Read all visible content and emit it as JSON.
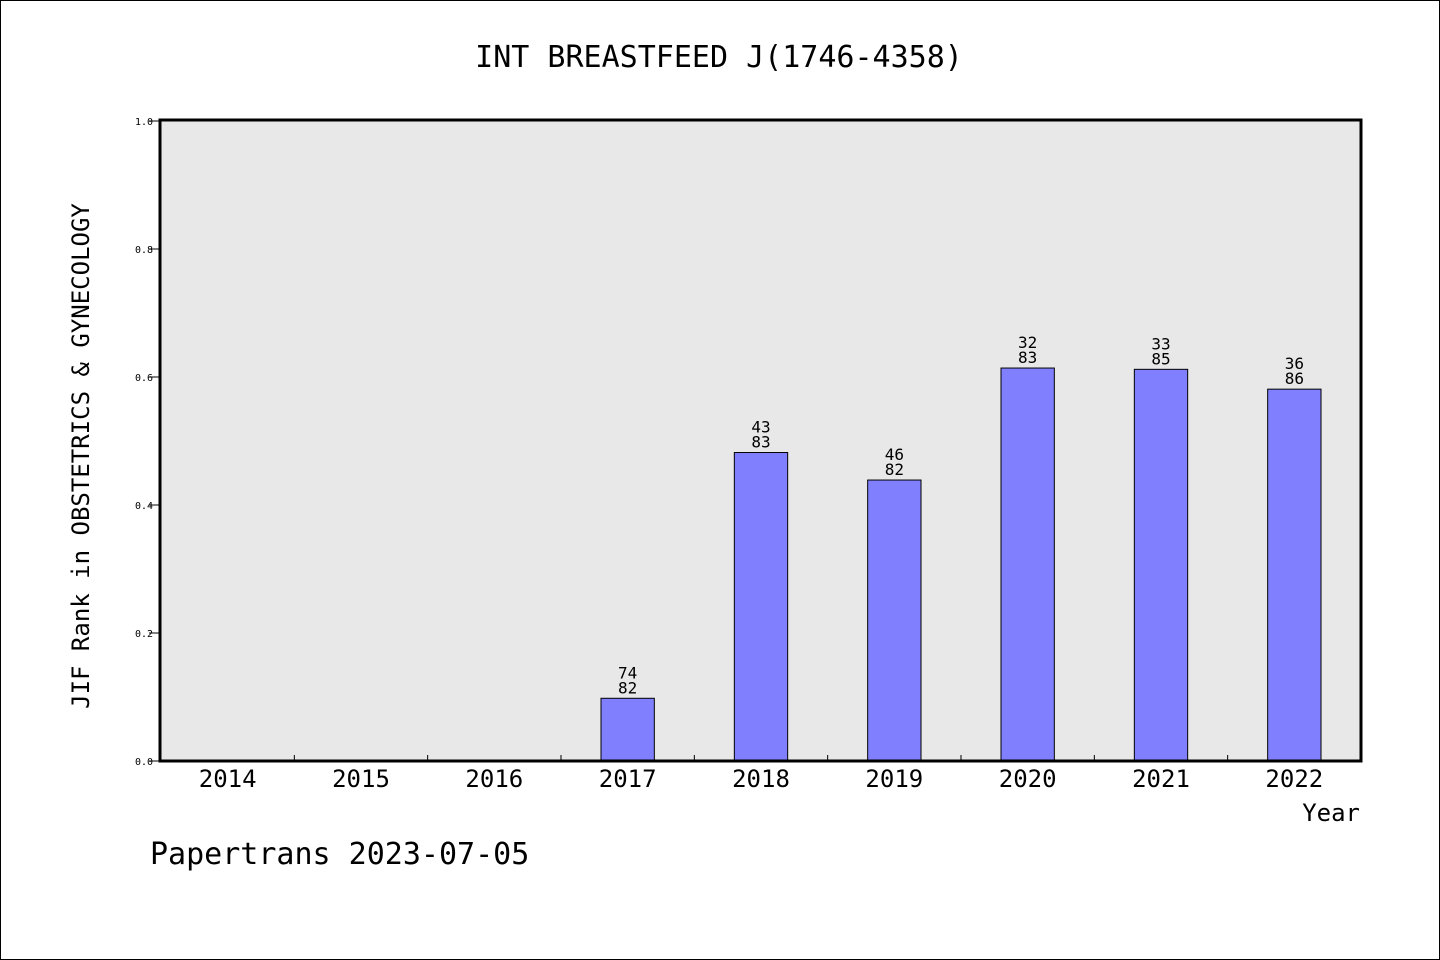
{
  "chart_data": {
    "type": "bar",
    "title": "INT BREASTFEED J(1746-4358)",
    "xlabel": "Year",
    "ylabel": "JIF Rank in OBSTETRICS & GYNECOLOGY",
    "categories": [
      "2014",
      "2015",
      "2016",
      "2017",
      "2018",
      "2019",
      "2020",
      "2021",
      "2022"
    ],
    "values": [
      null,
      null,
      null,
      0.098,
      0.482,
      0.439,
      0.614,
      0.612,
      0.581
    ],
    "bar_labels": [
      null,
      null,
      null,
      {
        "rank": "74",
        "total": "82"
      },
      {
        "rank": "43",
        "total": "83"
      },
      {
        "rank": "46",
        "total": "82"
      },
      {
        "rank": "32",
        "total": "83"
      },
      {
        "rank": "33",
        "total": "85"
      },
      {
        "rank": "36",
        "total": "86"
      }
    ],
    "yticks": [
      "0.0",
      "0.2",
      "0.4",
      "0.6",
      "0.8",
      "1.0"
    ],
    "ylim": [
      0,
      1.0
    ],
    "grid": false,
    "legend": "none",
    "colors": {
      "bar_fill": "#8080ff",
      "plot_background": "#e8e8e8",
      "axis": "#000000"
    }
  },
  "footer": "Papertrans 2023-07-05"
}
